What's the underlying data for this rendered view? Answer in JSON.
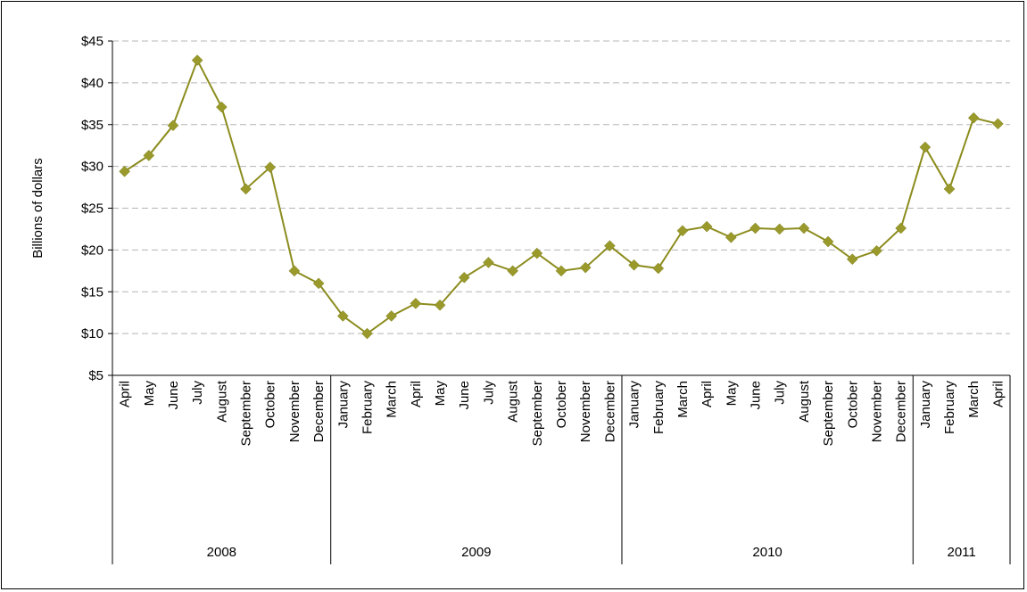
{
  "chart_data": {
    "type": "line",
    "ylabel": "Billions of dollars",
    "xlabel": "",
    "ylim": [
      5,
      45
    ],
    "yticks": [
      5,
      10,
      15,
      20,
      25,
      30,
      35,
      40,
      45
    ],
    "ytick_labels": [
      "$5",
      "$10",
      "$15",
      "$20",
      "$25",
      "$30",
      "$35",
      "$40",
      "$45"
    ],
    "grid": true,
    "legend": "none",
    "colors": {
      "line": "#8c8c1e",
      "marker": "#9a9a2c",
      "grid": "#b4b4b4"
    },
    "marker": "diamond",
    "years": [
      {
        "label": "2008",
        "count": 9
      },
      {
        "label": "2009",
        "count": 12
      },
      {
        "label": "2010",
        "count": 12
      },
      {
        "label": "2011",
        "count": 4
      }
    ],
    "categories": [
      "April",
      "May",
      "June",
      "July",
      "August",
      "September",
      "October",
      "November",
      "December",
      "January",
      "February",
      "March",
      "April",
      "May",
      "June",
      "July",
      "August",
      "September",
      "October",
      "November",
      "December",
      "January",
      "February",
      "March",
      "April",
      "May",
      "June",
      "July",
      "August",
      "September",
      "October",
      "November",
      "December",
      "January",
      "February",
      "March",
      "April"
    ],
    "values": [
      29.4,
      31.3,
      34.9,
      42.7,
      37.1,
      27.3,
      29.9,
      17.5,
      16.0,
      12.1,
      10.0,
      12.1,
      13.6,
      13.4,
      16.7,
      18.5,
      17.5,
      19.6,
      17.5,
      17.9,
      20.5,
      18.2,
      17.8,
      22.3,
      22.8,
      21.5,
      22.6,
      22.5,
      22.6,
      21.0,
      18.9,
      19.9,
      22.6,
      32.3,
      27.3,
      35.8,
      35.1
    ]
  }
}
